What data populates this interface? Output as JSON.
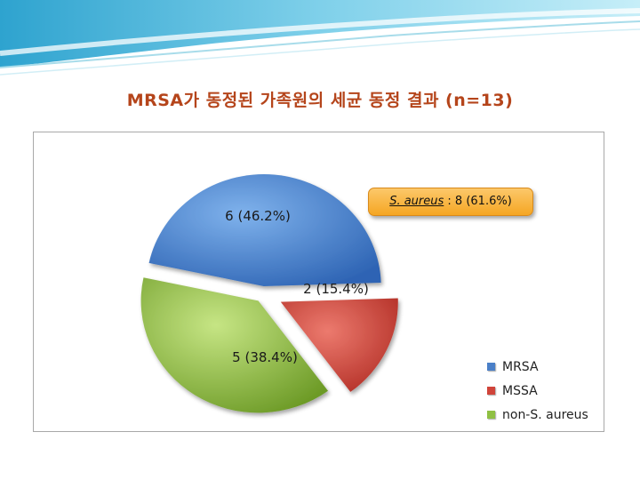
{
  "title": "MRSA가 동정된 가족원의 세균 동정 결과 (n=13)",
  "callout": {
    "species": "S. aureus",
    "rest": ": 8 (61.6%)"
  },
  "chart_data": {
    "type": "pie",
    "title": "MRSA가 동정된 가족원의 세균 동정 결과 (n=13)",
    "categories": [
      "MRSA",
      "MSSA",
      "non-S. aureus"
    ],
    "values": [
      6,
      2,
      5
    ],
    "labels": [
      "6 (46.2%)",
      "2 (15.4%)",
      "5 (38.4%)"
    ],
    "colors": [
      "#4a7fc8",
      "#d0443a",
      "#8fc043"
    ],
    "exploded": true,
    "legend_position": "bottom-right"
  }
}
